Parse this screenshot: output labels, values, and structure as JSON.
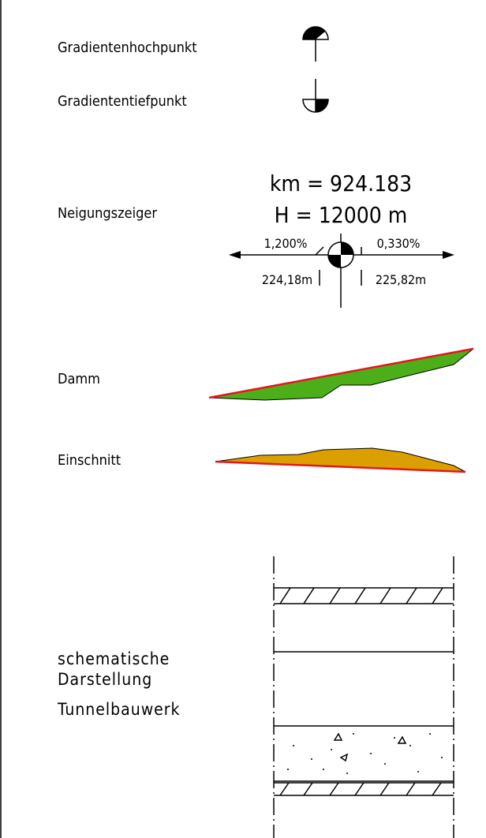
{
  "legend": {
    "high_point": {
      "label": "Gradientenhochpunkt"
    },
    "low_point": {
      "label": "Gradiententiefpunkt"
    },
    "slope_indicator": {
      "label": "Neigungszeiger",
      "km_line": "km = 924.183",
      "h_line": "H = 12000 m",
      "left_slope": "1,200%",
      "right_slope": "0,330%",
      "left_length": "224,18m",
      "right_length": "225,82m"
    },
    "embankment": {
      "label": "Damm"
    },
    "cutting": {
      "label": "Einschnitt"
    },
    "tunnel": {
      "label_lines": [
        "schematische",
        "Darstellung",
        "Tunnelbauwerk"
      ]
    }
  }
}
